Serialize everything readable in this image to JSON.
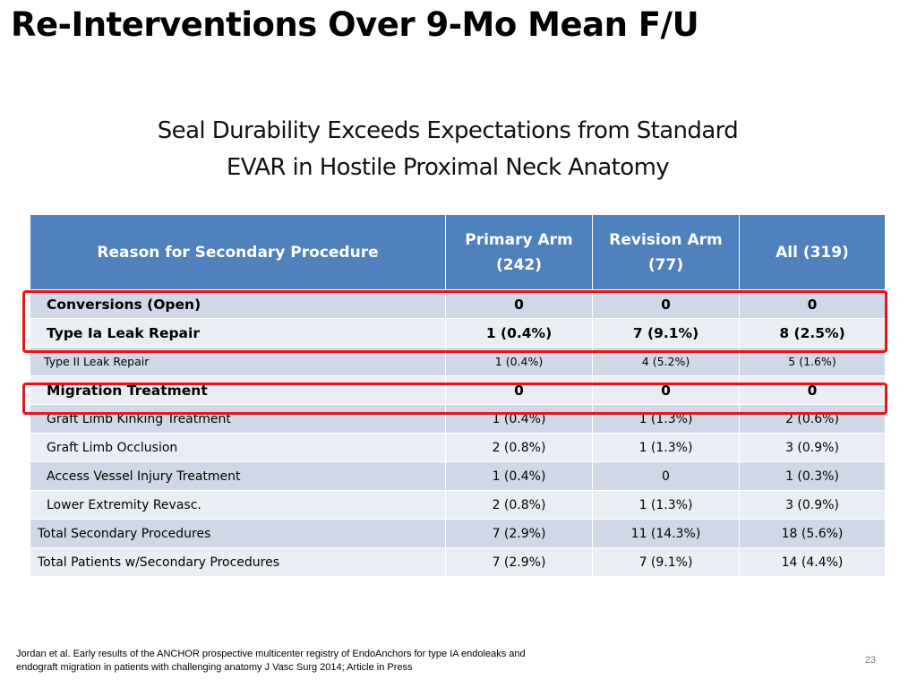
{
  "slide": {
    "title": "Re-Interventions Over 9-Mo Mean F/U",
    "subtitle_lines": [
      "Seal Durability Exceeds Expectations from Standard",
      "EVAR in Hostile Proximal Neck Anatomy"
    ],
    "footnote_lines": [
      "Jordan et al. Early results of the ANCHOR prospective multicenter registry of EndoAnchors for type IA endoleaks and",
      "endograft migration in patients with challenging anatomy J Vasc Surg 2014; Article in Press"
    ],
    "page_number": "23"
  },
  "table": {
    "headers": {
      "reason": "Reason for Secondary Procedure",
      "primary_line1": "Primary Arm",
      "primary_line2": "(242)",
      "revision_line1": "Revision Arm",
      "revision_line2": "(77)",
      "all": "All (319)"
    },
    "rows": [
      {
        "label": "Conversions (Open)",
        "primary": "0",
        "revision": "0",
        "all": "0"
      },
      {
        "label": "Type Ia Leak Repair",
        "primary": "1 (0.4%)",
        "revision": "7 (9.1%)",
        "all": "8 (2.5%)"
      },
      {
        "label": "Type II Leak Repair",
        "primary": "1 (0.4%)",
        "revision": "4 (5.2%)",
        "all": "5 (1.6%)"
      },
      {
        "label": "Migration Treatment",
        "primary": "0",
        "revision": "0",
        "all": "0"
      },
      {
        "label": "Graft Limb Kinking Treatment",
        "primary": "1 (0.4%)",
        "revision": "1 (1.3%)",
        "all": "2 (0.6%)"
      },
      {
        "label": "Graft Limb Occlusion",
        "primary": "2 (0.8%)",
        "revision": "1 (1.3%)",
        "all": "3 (0.9%)"
      },
      {
        "label": "Access Vessel Injury Treatment",
        "primary": "1 (0.4%)",
        "revision": "0",
        "all": "1 (0.3%)"
      },
      {
        "label": "Lower Extremity Revasc.",
        "primary": "2 (0.8%)",
        "revision": "1 (1.3%)",
        "all": "3 (0.9%)"
      },
      {
        "label": "Total Secondary Procedures",
        "primary": "7 (2.9%)",
        "revision": "11 (14.3%)",
        "all": "18 (5.6%)"
      },
      {
        "label": "Total Patients w/Secondary Procedures",
        "primary": "7 (2.9%)",
        "revision": "7 (9.1%)",
        "all": "14 (4.4%)"
      }
    ]
  },
  "colors": {
    "header_bg": "#4f81bd",
    "row_odd": "#d0d8e8",
    "row_even": "#e9edf4",
    "highlight": "#e8141a"
  }
}
